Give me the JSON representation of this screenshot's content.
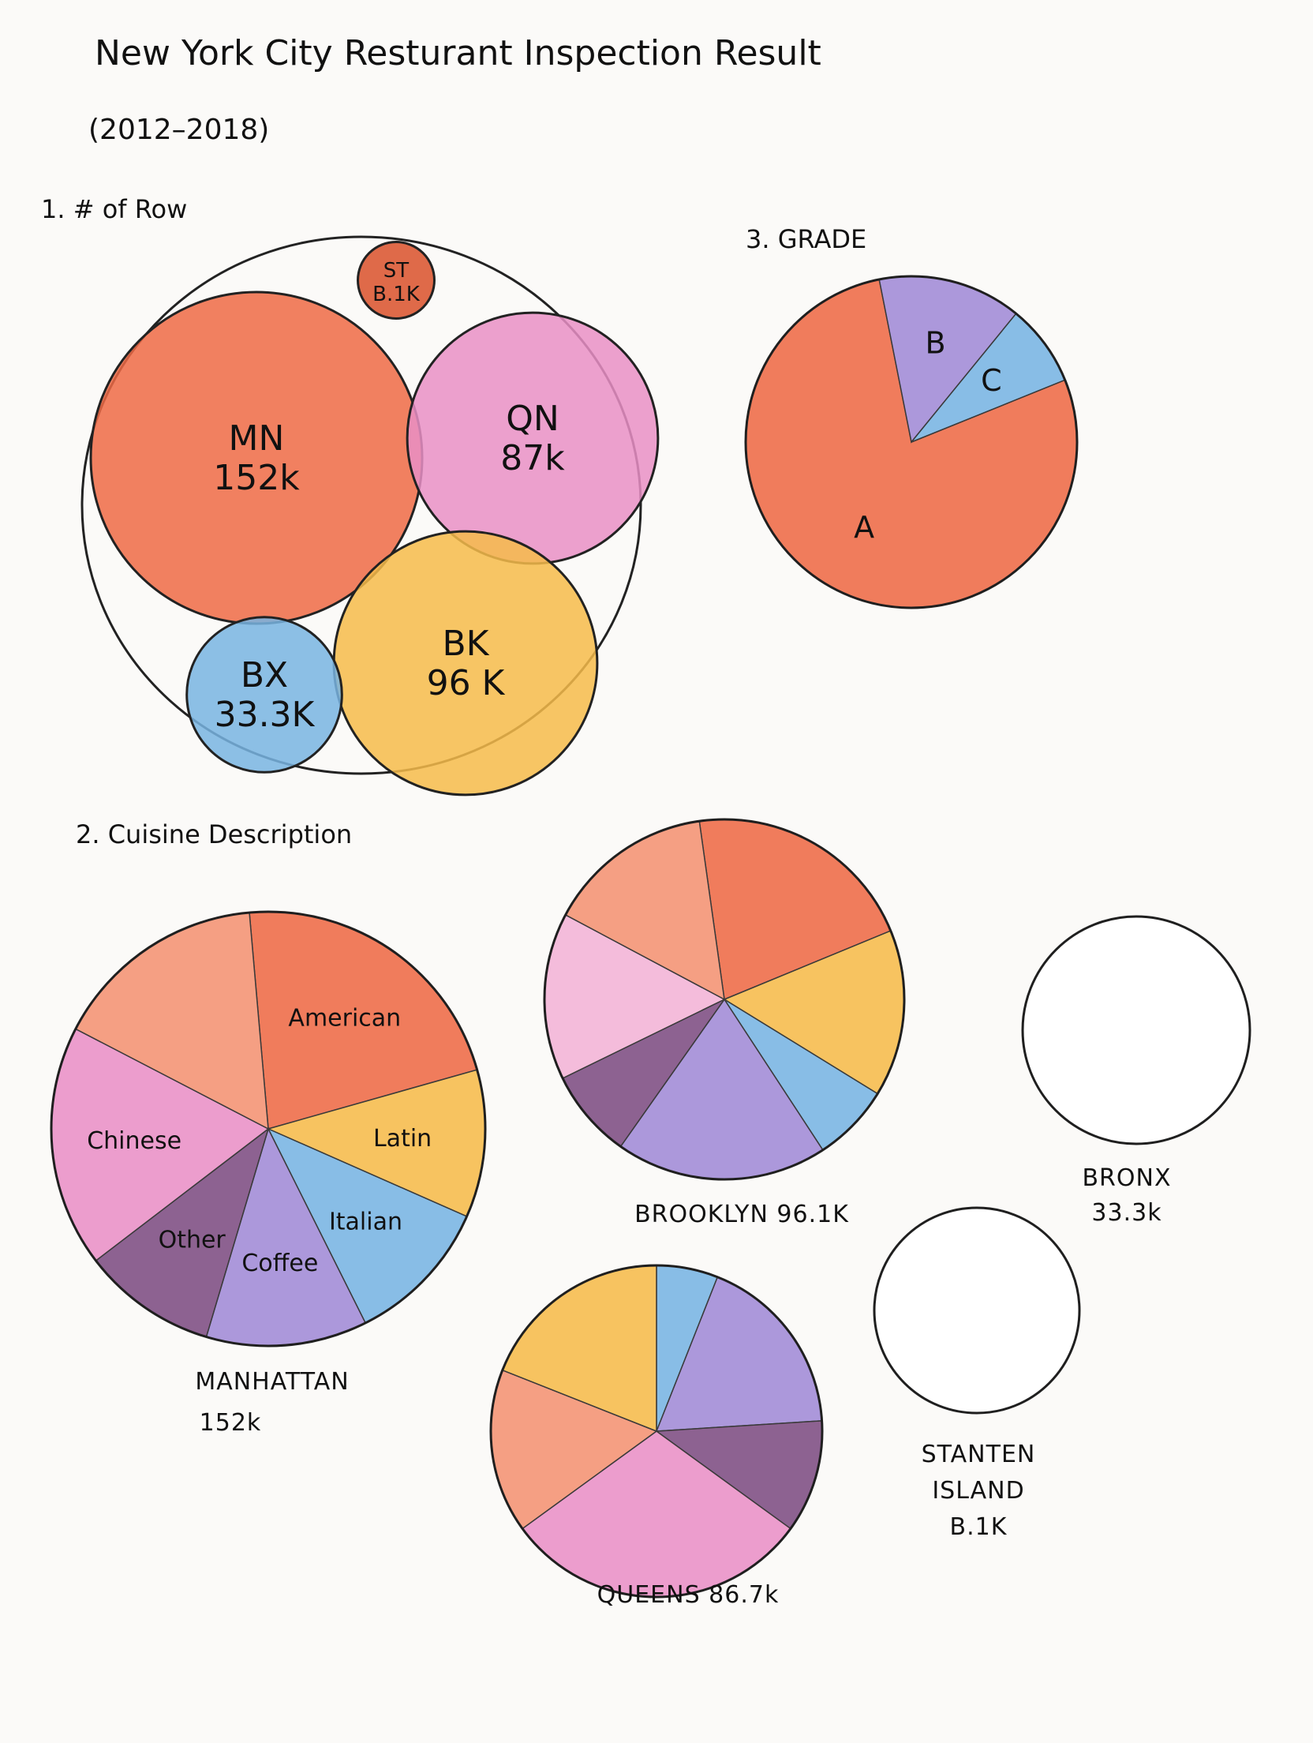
{
  "title": "New York City Resturant Inspection Result",
  "subtitle": "(2012–2018)",
  "colors": {
    "orange_red": "#ee6a45",
    "pink": "#e98fc6",
    "yellow": "#f6bb4a",
    "blue": "#78b4e2",
    "purple": "#a08ad6",
    "dark_purple": "#7d4c82",
    "light_pink": "#f2b3d6",
    "salmon": "#f49272",
    "dark_red": "#d9502a"
  },
  "chart_data": [
    {
      "type": "bubble",
      "heading": "1. # of Row",
      "bubbles": [
        {
          "label": "MN",
          "value_text": "152k",
          "value": 152000,
          "color": "#ee6a45"
        },
        {
          "label": "QN",
          "value_text": "87k",
          "value": 87000,
          "color": "#e98fc6"
        },
        {
          "label": "BK",
          "value_text": "96 K",
          "value": 96000,
          "color": "#f6bb4a"
        },
        {
          "label": "BX",
          "value_text": "33.3K",
          "value": 33300,
          "color": "#78b4e2"
        },
        {
          "label": "ST",
          "value_text": "B.1K",
          "value": 8100,
          "color": "#d9502a"
        }
      ]
    },
    {
      "type": "pie",
      "heading": "3. GRADE",
      "slices": [
        {
          "label": "A",
          "value": 0.78,
          "color": "#ee6a45"
        },
        {
          "label": "B",
          "value": 0.14,
          "color": "#a08ad6"
        },
        {
          "label": "C",
          "value": 0.08,
          "color": "#78b4e2"
        }
      ]
    },
    {
      "type": "pie",
      "heading": "2. Cuisine Description",
      "caption_line1": "MANHATTAN",
      "caption_line2": "152k",
      "slices": [
        {
          "label": "American",
          "value": 0.22,
          "color": "#ee6a45"
        },
        {
          "label": "Latin",
          "value": 0.11,
          "color": "#f6bb4a"
        },
        {
          "label": "Italian",
          "value": 0.11,
          "color": "#78b4e2"
        },
        {
          "label": "Coffee",
          "value": 0.12,
          "color": "#a08ad6"
        },
        {
          "label": "Other",
          "value": 0.1,
          "color": "#7d4c82"
        },
        {
          "label": "Chinese",
          "value": 0.18,
          "color": "#e98fc6"
        },
        {
          "label": "",
          "value": 0.16,
          "color": "#f49272"
        }
      ]
    },
    {
      "type": "pie",
      "caption_line1": "BROOKLYN 96.1K",
      "slices": [
        {
          "label": "",
          "value": 0.21,
          "color": "#ee6a45"
        },
        {
          "label": "",
          "value": 0.15,
          "color": "#f6bb4a"
        },
        {
          "label": "",
          "value": 0.07,
          "color": "#78b4e2"
        },
        {
          "label": "",
          "value": 0.19,
          "color": "#a08ad6"
        },
        {
          "label": "",
          "value": 0.08,
          "color": "#7d4c82"
        },
        {
          "label": "",
          "value": 0.15,
          "color": "#f2b3d6"
        },
        {
          "label": "",
          "value": 0.15,
          "color": "#f49272"
        }
      ]
    },
    {
      "type": "pie",
      "caption_line1": "QUEENS 86.7k",
      "slices": [
        {
          "label": "",
          "value": 0.06,
          "color": "#78b4e2"
        },
        {
          "label": "",
          "value": 0.18,
          "color": "#a08ad6"
        },
        {
          "label": "",
          "value": 0.11,
          "color": "#7d4c82"
        },
        {
          "label": "",
          "value": 0.3,
          "color": "#e98fc6"
        },
        {
          "label": "",
          "value": 0.16,
          "color": "#f49272"
        },
        {
          "label": "",
          "value": 0.19,
          "color": "#f6bb4a"
        }
      ]
    },
    {
      "type": "pie",
      "caption_line1": "BRONX",
      "caption_line2": "33.3k",
      "slices": []
    },
    {
      "type": "pie",
      "caption_line1": "STANTEN",
      "caption_line2": "ISLAND",
      "caption_line3": "B.1K",
      "slices": []
    }
  ]
}
